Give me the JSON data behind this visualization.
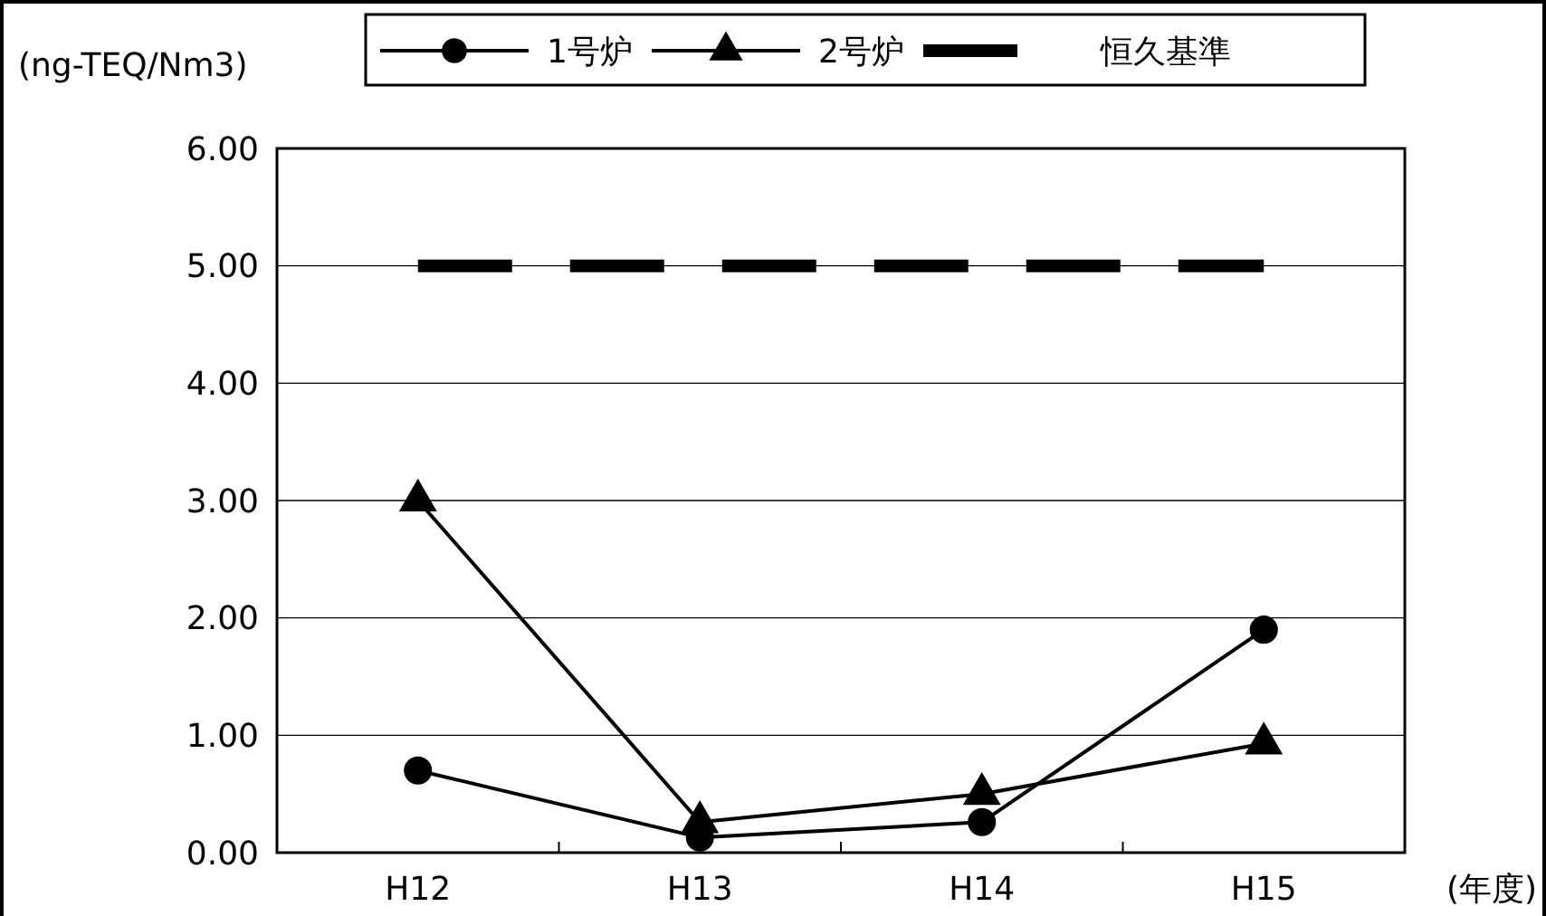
{
  "chart_data": {
    "type": "line",
    "xlabel": "(年度)",
    "ylabel": "(ng-TEQ/Nm3)",
    "categories": [
      "H12",
      "H13",
      "H14",
      "H15"
    ],
    "ylim": [
      0,
      6
    ],
    "yticks": [
      {
        "value": 0,
        "label": "0.00"
      },
      {
        "value": 1,
        "label": "1.00"
      },
      {
        "value": 2,
        "label": "2.00"
      },
      {
        "value": 3,
        "label": "3.00"
      },
      {
        "value": 4,
        "label": "4.00"
      },
      {
        "value": 5,
        "label": "5.00"
      },
      {
        "value": 6,
        "label": "6.00"
      }
    ],
    "grid": "y",
    "legend": "top",
    "series": [
      {
        "name": "1号炉",
        "color": "#000000",
        "marker": "circle",
        "line_style": "solid",
        "values": [
          0.7,
          0.13,
          0.26,
          1.9
        ]
      },
      {
        "name": "2号炉",
        "color": "#000000",
        "marker": "triangle",
        "line_style": "solid",
        "values": [
          3.0,
          0.26,
          0.5,
          0.93
        ]
      },
      {
        "name": "恒久基準",
        "color": "#000000",
        "marker": "none",
        "line_style": "dashed",
        "values": [
          5,
          5,
          5,
          5
        ]
      }
    ]
  }
}
